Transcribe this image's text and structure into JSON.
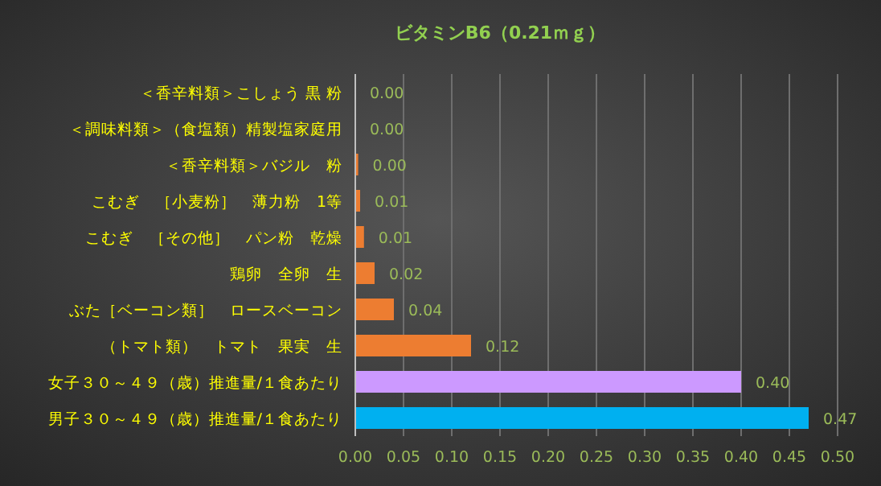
{
  "chart_data": {
    "type": "bar",
    "orientation": "horizontal",
    "title": "ビタミンB6（0.21ｍｇ）",
    "categories": [
      "＜香辛料類＞こしょう 黒 粉",
      "＜調味料類＞（食塩類）精製塩家庭用",
      "＜香辛料類＞バジル　粉",
      "こむぎ　［小麦粉］　薄力粉　1等",
      "こむぎ　［その他］　パン粉　乾燥",
      "鶏卵　全卵　生",
      "ぶた［ベーコン類］　ロースベーコン",
      "（トマト類）　トマト　果実　生",
      "女子３０～４９（歳）推進量/１食あたり",
      "男子３０～４９（歳）推進量/１食あたり"
    ],
    "values": [
      0,
      0,
      0.003,
      0.005,
      0.009,
      0.02,
      0.04,
      0.12,
      0.4,
      0.47
    ],
    "value_labels": [
      "0.00",
      "0.00",
      "0.00",
      "0.01",
      "0.01",
      "0.02",
      "0.04",
      "0.12",
      "0.40",
      "0.47"
    ],
    "colors": [
      "#ed7d31",
      "#ed7d31",
      "#ed7d31",
      "#ed7d31",
      "#ed7d31",
      "#ed7d31",
      "#ed7d31",
      "#ed7d31",
      "#cc99ff",
      "#00b0f0"
    ],
    "xlim": [
      0,
      0.5
    ],
    "xticks": [
      {
        "value": 0,
        "label": "0.00"
      },
      {
        "value": 0.05,
        "label": "0.05"
      },
      {
        "value": 0.1,
        "label": "0.10"
      },
      {
        "value": 0.15,
        "label": "0.15"
      },
      {
        "value": 0.2,
        "label": "0.20"
      },
      {
        "value": 0.25,
        "label": "0.25"
      },
      {
        "value": 0.3,
        "label": "0.30"
      },
      {
        "value": 0.35,
        "label": "0.35"
      },
      {
        "value": 0.4,
        "label": "0.40"
      },
      {
        "value": 0.45,
        "label": "0.45"
      },
      {
        "value": 0.5,
        "label": "0.50"
      }
    ],
    "grid": "x"
  }
}
